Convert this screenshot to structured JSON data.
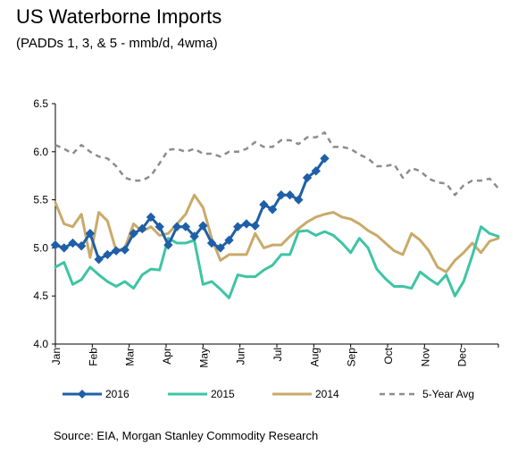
{
  "header": {
    "title": "US Waterborne Imports",
    "subtitle": "(PADDs 1, 3, & 5 - mmb/d, 4wma)"
  },
  "footer": {
    "source": "Source: EIA, Morgan Stanley Commodity Research"
  },
  "chart_data": {
    "type": "line",
    "title": "US Waterborne Imports",
    "subtitle": "(PADDs 1, 3, & 5 - mmb/d, 4wma)",
    "xlabel": "",
    "ylabel": "",
    "x_unit": "week of year",
    "xlim": [
      1,
      52
    ],
    "ylim": [
      4.0,
      6.5
    ],
    "yticks": [
      4.0,
      4.5,
      5.0,
      5.5,
      6.0,
      6.5
    ],
    "ytick_labels": [
      "4.0",
      "4.5",
      "5.0",
      "5.5",
      "6.0",
      "6.5"
    ],
    "xtick_labels": [
      "Jan",
      "Feb",
      "Mar",
      "Apr",
      "May",
      "Jun",
      "Jul",
      "Aug",
      "Sep",
      "Oct",
      "Nov",
      "Dec"
    ],
    "grid": false,
    "legend_position": "bottom",
    "series": [
      {
        "name": "2016",
        "color": "#1F5FA8",
        "style": "solid-with-diamond-markers",
        "values": [
          5.03,
          5.0,
          5.05,
          5.02,
          5.15,
          4.88,
          4.93,
          4.97,
          4.98,
          5.15,
          5.2,
          5.32,
          5.22,
          5.03,
          5.22,
          5.22,
          5.12,
          5.23,
          5.05,
          5.0,
          5.08,
          5.22,
          5.25,
          5.23,
          5.45,
          5.4,
          5.55,
          5.55,
          5.5,
          5.73,
          5.8,
          5.93
        ]
      },
      {
        "name": "2015",
        "color": "#3EC4A4",
        "style": "solid",
        "values": [
          4.8,
          4.85,
          4.62,
          4.67,
          4.8,
          4.72,
          4.65,
          4.6,
          4.65,
          4.58,
          4.72,
          4.78,
          4.77,
          5.1,
          5.05,
          5.05,
          5.08,
          4.62,
          4.65,
          4.57,
          4.48,
          4.72,
          4.7,
          4.7,
          4.77,
          4.82,
          4.93,
          4.93,
          5.17,
          5.18,
          5.13,
          5.17,
          5.13,
          5.05,
          4.95,
          5.1,
          5.0,
          4.78,
          4.68,
          4.6,
          4.6,
          4.58,
          4.75,
          4.68,
          4.62,
          4.72,
          4.5,
          4.65,
          4.92,
          5.22,
          5.15,
          5.12
        ]
      },
      {
        "name": "2014",
        "color": "#C9AA6A",
        "style": "solid",
        "values": [
          5.47,
          5.25,
          5.22,
          5.35,
          4.9,
          5.37,
          5.28,
          4.97,
          5.0,
          5.25,
          5.17,
          5.22,
          5.13,
          5.15,
          5.25,
          5.35,
          5.55,
          5.42,
          5.1,
          4.87,
          4.93,
          4.93,
          4.93,
          5.15,
          5.0,
          5.03,
          5.03,
          5.12,
          5.2,
          5.27,
          5.32,
          5.35,
          5.37,
          5.32,
          5.3,
          5.25,
          5.18,
          5.13,
          5.05,
          4.97,
          4.93,
          5.15,
          5.08,
          4.97,
          4.8,
          4.75,
          4.87,
          4.95,
          5.05,
          4.95,
          5.07,
          5.1
        ]
      },
      {
        "name": "5-Year Avg",
        "color": "#8C8C8C",
        "style": "dashed",
        "values": [
          6.07,
          6.03,
          5.98,
          6.07,
          6.0,
          5.95,
          5.93,
          5.85,
          5.73,
          5.7,
          5.7,
          5.75,
          5.88,
          6.02,
          6.03,
          6.0,
          6.03,
          5.98,
          5.98,
          5.95,
          6.0,
          6.0,
          6.03,
          6.1,
          6.05,
          6.05,
          6.12,
          6.12,
          6.08,
          6.15,
          6.15,
          6.2,
          6.05,
          6.05,
          6.03,
          5.97,
          5.93,
          5.85,
          5.85,
          5.87,
          5.73,
          5.83,
          5.8,
          5.72,
          5.68,
          5.67,
          5.55,
          5.65,
          5.7,
          5.7,
          5.72,
          5.62
        ]
      }
    ]
  }
}
